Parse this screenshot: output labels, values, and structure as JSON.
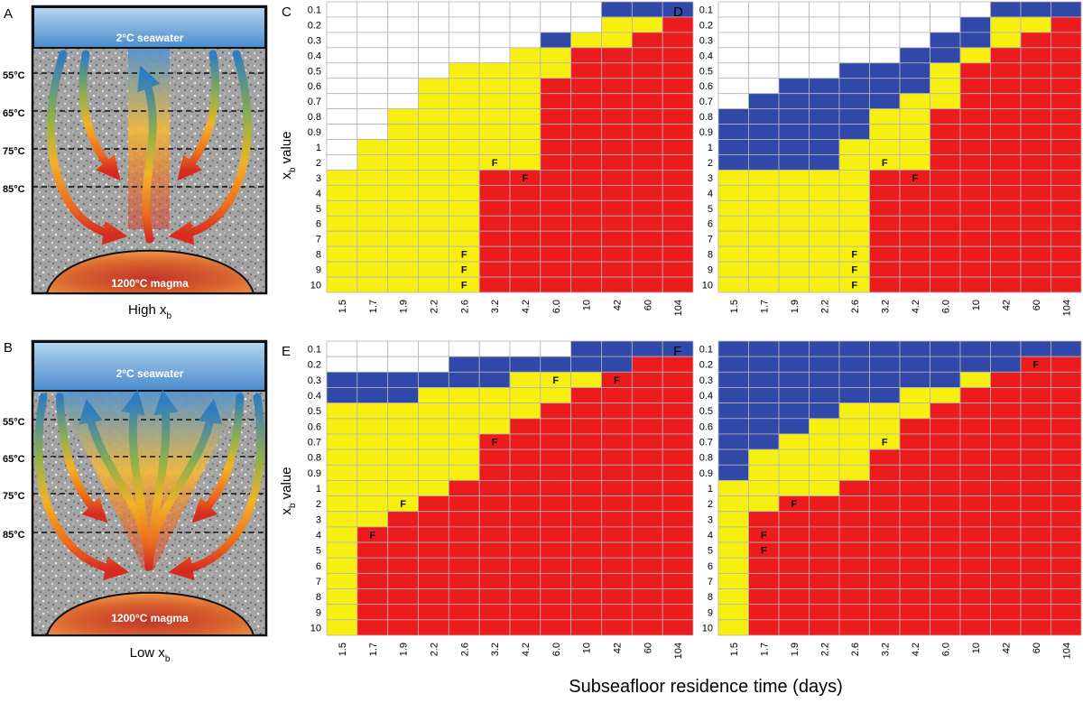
{
  "panels": {
    "A": {
      "letter": "A",
      "seawater": "2°C seawater",
      "magma": "1200°C magma",
      "caption_main": "High x",
      "caption_sub": "b"
    },
    "B": {
      "letter": "B",
      "seawater": "2°C seawater",
      "magma": "1200°C magma",
      "caption_main": "Low x",
      "caption_sub": "b"
    }
  },
  "isotherms": [
    "55°C",
    "65°C",
    "75°C",
    "85°C"
  ],
  "colors": {
    "white": "#ffffff",
    "blue": "#3048a8",
    "yellow": "#f6ef10",
    "red": "#ec1b1d",
    "grid": "#b4b4b4",
    "seawater_top": "#a9cdec",
    "seawater_bottom": "#4b8fd0",
    "rock": "#9a9a9a"
  },
  "axes": {
    "xlabel": "Subseafloor residence time (days)",
    "ylabel_main": "x",
    "ylabel_sub": "b",
    "ylabel_rest": " value"
  },
  "chart_data": [
    {
      "panel": "C",
      "type": "heatmap",
      "x": [
        "1.5",
        "1.7",
        "1.9",
        "2.2",
        "2.6",
        "3.2",
        "4.2",
        "6.0",
        "10",
        "42",
        "60",
        "104"
      ],
      "y": [
        "0.1",
        "0.2",
        "0.3",
        "0.4",
        "0.5",
        "0.6",
        "0.7",
        "0.8",
        "0.9",
        "1",
        "2",
        "3",
        "4",
        "5",
        "6",
        "7",
        "8",
        "9",
        "10"
      ],
      "legend": {
        "W": "white",
        "B": "blue",
        "Y": "yellow",
        "R": "red"
      },
      "rows": [
        "WWWWWWWWWBBB",
        "WWWWWWWWWYYR",
        "WWWWWWWBYYRR",
        "WWWWWWYYRRRR",
        "WWWWYYYYRRRR",
        "WWWYYYYRRRRR",
        "WWWYYYYRRRRR",
        "WWYYYYYRRRRR",
        "WWYYYYYRRRRR",
        "WYYYYYYRRRRR",
        "WYYYYYYRRRRR",
        "YYYYYRRRRRRR",
        "YYYYYRRRRRRR",
        "YYYYYRRRRRRR",
        "YYYYYRRRRRRR",
        "YYYYYRRRRRRR",
        "YYYYYRRRRRRR",
        "YYYYYRRRRRRR",
        "YYYYYRRRRRRR"
      ],
      "markers": [
        {
          "row": 10,
          "col": 5,
          "text": "F"
        },
        {
          "row": 11,
          "col": 6,
          "text": "F"
        },
        {
          "row": 16,
          "col": 4,
          "text": "F"
        },
        {
          "row": 17,
          "col": 4,
          "text": "F"
        },
        {
          "row": 18,
          "col": 4,
          "text": "F"
        }
      ]
    },
    {
      "panel": "D",
      "type": "heatmap",
      "x": [
        "1.5",
        "1.7",
        "1.9",
        "2.2",
        "2.6",
        "3.2",
        "4.2",
        "6.0",
        "10",
        "42",
        "60",
        "104"
      ],
      "y": [
        "0.1",
        "0.2",
        "0.3",
        "0.4",
        "0.5",
        "0.6",
        "0.7",
        "0.8",
        "0.9",
        "1",
        "2",
        "3",
        "4",
        "5",
        "6",
        "7",
        "8",
        "9",
        "10"
      ],
      "legend": {
        "W": "white",
        "B": "blue",
        "Y": "yellow",
        "R": "red"
      },
      "rows": [
        "WWWWWWWWWBBB",
        "WWWWWWWWBYYR",
        "WWWWWWWBBYRR",
        "WWWWWWBBYRRR",
        "WWWWBBBYRRRR",
        "WWBBBBBYRRRR",
        "WBBBBBYYRRRR",
        "BBBBBYYRRRRR",
        "BBBBBYYRRRRR",
        "BBBBYYYRRRRR",
        "BBBBYYYRRRRR",
        "YYYYYRRRRRRR",
        "YYYYYRRRRRRR",
        "YYYYYRRRRRRR",
        "YYYYYRRRRRRR",
        "YYYYYRRRRRRR",
        "YYYYYRRRRRRR",
        "YYYYYRRRRRRR",
        "YYYYYRRRRRRR"
      ],
      "markers": [
        {
          "row": 10,
          "col": 5,
          "text": "F"
        },
        {
          "row": 11,
          "col": 6,
          "text": "F"
        },
        {
          "row": 16,
          "col": 4,
          "text": "F"
        },
        {
          "row": 17,
          "col": 4,
          "text": "F"
        },
        {
          "row": 18,
          "col": 4,
          "text": "F"
        }
      ]
    },
    {
      "panel": "E",
      "type": "heatmap",
      "x": [
        "1.5",
        "1.7",
        "1.9",
        "2.2",
        "2.6",
        "3.2",
        "4.2",
        "6.0",
        "10",
        "42",
        "60",
        "104"
      ],
      "y": [
        "0.1",
        "0.2",
        "0.3",
        "0.4",
        "0.5",
        "0.6",
        "0.7",
        "0.8",
        "0.9",
        "1",
        "2",
        "3",
        "4",
        "5",
        "6",
        "7",
        "8",
        "9",
        "10"
      ],
      "legend": {
        "W": "white",
        "B": "blue",
        "Y": "yellow",
        "R": "red"
      },
      "rows": [
        "WWWWWWWWBBBB",
        "WWWWBBBBBBRR",
        "BBBBBBYYYRRR",
        "BBBYYYYYRRRR",
        "YYYYYYYRRRRR",
        "YYYYYYRRRRRR",
        "YYYYYRRRRRRR",
        "YYYYYRRRRRRR",
        "YYYYYRRRRRRR",
        "YYYYRRRRRRRR",
        "YYYRRRRRRRRR",
        "YYRRRRRRRRRR",
        "YRRRRRRRRRRR",
        "YRRRRRRRRRRR",
        "YRRRRRRRRRRR",
        "YRRRRRRRRRRR",
        "YRRRRRRRRRRR",
        "YRRRRRRRRRRR",
        "YRRRRRRRRRRR"
      ],
      "markers": [
        {
          "row": 2,
          "col": 7,
          "text": "F"
        },
        {
          "row": 2,
          "col": 9,
          "text": "F"
        },
        {
          "row": 6,
          "col": 5,
          "text": "F"
        },
        {
          "row": 10,
          "col": 2,
          "text": "F"
        },
        {
          "row": 12,
          "col": 1,
          "text": "F"
        }
      ]
    },
    {
      "panel": "F",
      "type": "heatmap",
      "x": [
        "1.5",
        "1.7",
        "1.9",
        "2.2",
        "2.6",
        "3.2",
        "4.2",
        "6.0",
        "10",
        "42",
        "60",
        "104"
      ],
      "y": [
        "0.1",
        "0.2",
        "0.3",
        "0.4",
        "0.5",
        "0.6",
        "0.7",
        "0.8",
        "0.9",
        "1",
        "2",
        "3",
        "4",
        "5",
        "6",
        "7",
        "8",
        "9",
        "10"
      ],
      "legend": {
        "W": "white",
        "B": "blue",
        "Y": "yellow",
        "R": "red"
      },
      "rows": [
        "BBBBBBBBBBBB",
        "BBBBBBBBBBRR",
        "BBBBBBBBYRRR",
        "BBBBBBYYRRRR",
        "BBBBYYYRRRRR",
        "BBBYYYRRRRRR",
        "BBYYYYRRRRRR",
        "BYYYYRRRRRRR",
        "BYYYYRRRRRRR",
        "YYYYRRRRRRRR",
        "YYRRRRRRRRRR",
        "YRRRRRRRRRRR",
        "YRRRRRRRRRRR",
        "YRRRRRRRRRRR",
        "YRRRRRRRRRRR",
        "YRRRRRRRRRRR",
        "YRRRRRRRRRRR",
        "YRRRRRRRRRRR",
        "YRRRRRRRRRRR"
      ],
      "markers": [
        {
          "row": 1,
          "col": 10,
          "text": "F"
        },
        {
          "row": 6,
          "col": 5,
          "text": "F"
        },
        {
          "row": 10,
          "col": 2,
          "text": "F"
        },
        {
          "row": 12,
          "col": 1,
          "text": "F"
        },
        {
          "row": 13,
          "col": 1,
          "text": "F"
        }
      ]
    }
  ]
}
